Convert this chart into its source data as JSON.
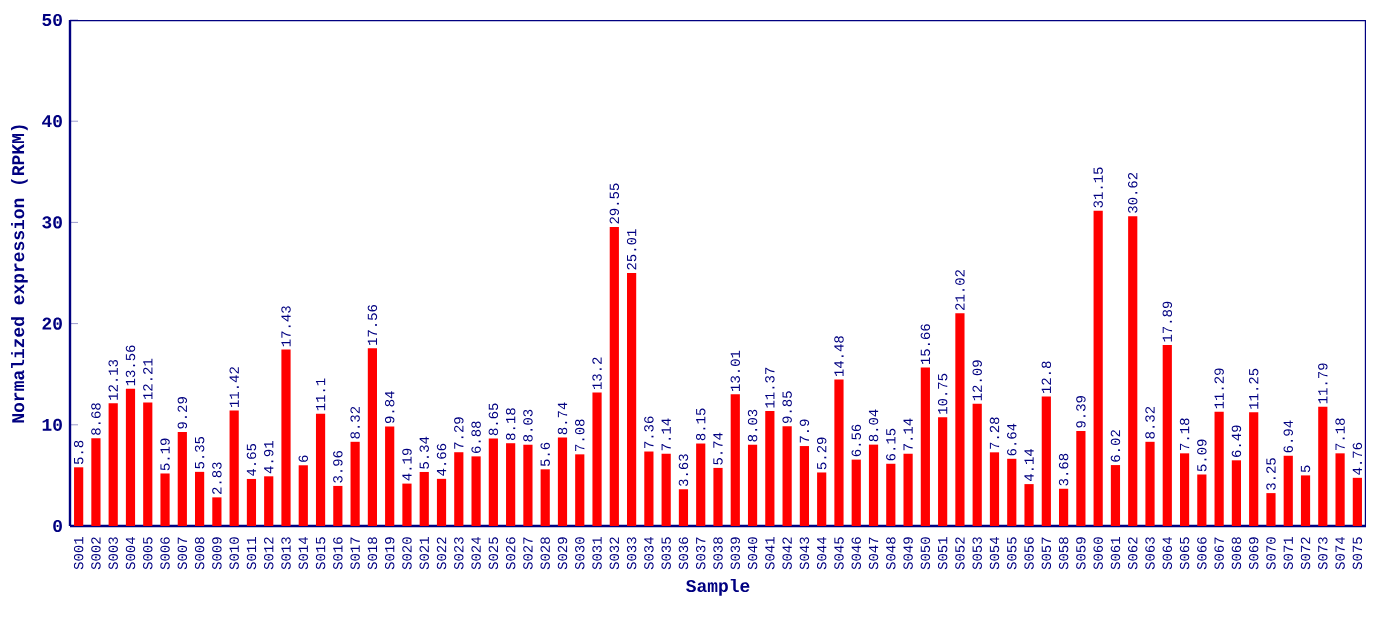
{
  "chart_data": {
    "type": "bar",
    "xlabel": "Sample",
    "ylabel": "Normalized expression (RPKM)",
    "categories": [
      "S001",
      "S002",
      "S003",
      "S004",
      "S005",
      "S006",
      "S007",
      "S008",
      "S009",
      "S010",
      "S011",
      "S012",
      "S013",
      "S014",
      "S015",
      "S016",
      "S017",
      "S018",
      "S019",
      "S020",
      "S021",
      "S022",
      "S023",
      "S024",
      "S025",
      "S026",
      "S027",
      "S028",
      "S029",
      "S030",
      "S031",
      "S032",
      "S033",
      "S034",
      "S035",
      "S036",
      "S037",
      "S038",
      "S039",
      "S040",
      "S041",
      "S042",
      "S043",
      "S044",
      "S045",
      "S046",
      "S047",
      "S048",
      "S049",
      "S050",
      "S051",
      "S052",
      "S053",
      "S054",
      "S055",
      "S056",
      "S057",
      "S058",
      "S059",
      "S060",
      "S061",
      "S062",
      "S063",
      "S064",
      "S065",
      "S066",
      "S067",
      "S068",
      "S069",
      "S070",
      "S071",
      "S072",
      "S073",
      "S074",
      "S075"
    ],
    "values": [
      5.8,
      8.68,
      12.13,
      13.56,
      12.21,
      5.19,
      9.29,
      5.35,
      2.83,
      11.42,
      4.65,
      4.91,
      17.43,
      6,
      11.1,
      3.96,
      8.32,
      17.56,
      9.84,
      4.19,
      5.34,
      4.66,
      7.29,
      6.88,
      8.65,
      8.18,
      8.03,
      5.6,
      8.74,
      7.08,
      13.2,
      29.55,
      25.01,
      7.36,
      7.14,
      3.63,
      8.15,
      5.74,
      13.01,
      8.03,
      11.37,
      9.85,
      7.9,
      5.29,
      14.48,
      6.56,
      8.04,
      6.15,
      7.14,
      15.66,
      10.75,
      21.02,
      12.09,
      7.28,
      6.64,
      4.14,
      12.8,
      3.68,
      9.39,
      31.15,
      6.02,
      30.62,
      8.32,
      17.89,
      7.18,
      5.09,
      11.29,
      6.49,
      11.25,
      3.25,
      6.94,
      5,
      11.79,
      7.18,
      4.76
    ],
    "color": "#ff0000",
    "ylim": [
      0,
      50
    ],
    "yticks": [
      0,
      10,
      20,
      30,
      40,
      50
    ],
    "data_labels": true
  }
}
